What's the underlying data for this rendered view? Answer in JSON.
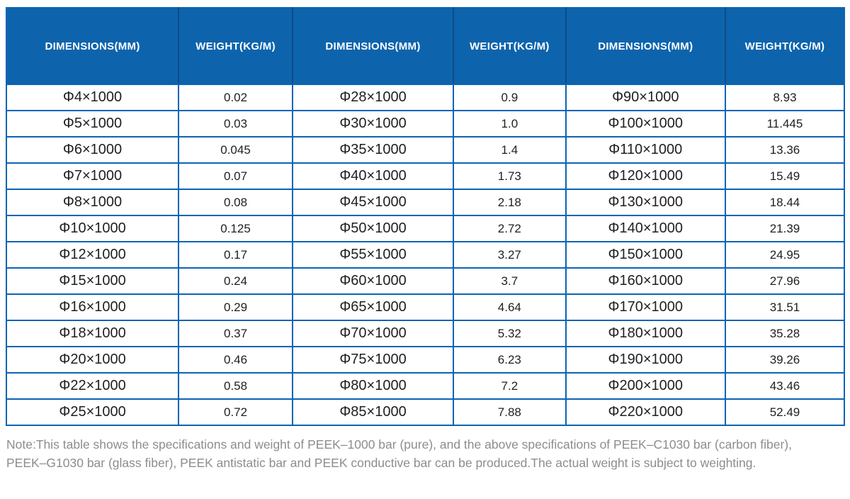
{
  "table": {
    "header": [
      "DIMENSIONS(MM)",
      "WEIGHT(KG/M)",
      "DIMENSIONS(MM)",
      "WEIGHT(KG/M)",
      "DIMENSIONS(MM)",
      "WEIGHT(KG/M)"
    ],
    "rows": [
      [
        "Φ4×1000",
        "0.02",
        "Φ28×1000",
        "0.9",
        "Φ90×1000",
        "8.93"
      ],
      [
        "Φ5×1000",
        "0.03",
        "Φ30×1000",
        "1.0",
        "Φ100×1000",
        "11.445"
      ],
      [
        "Φ6×1000",
        "0.045",
        "Φ35×1000",
        "1.4",
        "Φ110×1000",
        "13.36"
      ],
      [
        "Φ7×1000",
        "0.07",
        "Φ40×1000",
        "1.73",
        "Φ120×1000",
        "15.49"
      ],
      [
        "Φ8×1000",
        "0.08",
        "Φ45×1000",
        "2.18",
        "Φ130×1000",
        "18.44"
      ],
      [
        "Φ10×1000",
        "0.125",
        "Φ50×1000",
        "2.72",
        "Φ140×1000",
        "21.39"
      ],
      [
        "Φ12×1000",
        "0.17",
        "Φ55×1000",
        "3.27",
        "Φ150×1000",
        "24.95"
      ],
      [
        "Φ15×1000",
        "0.24",
        "Φ60×1000",
        "3.7",
        "Φ160×1000",
        "27.96"
      ],
      [
        "Φ16×1000",
        "0.29",
        "Φ65×1000",
        "4.64",
        "Φ170×1000",
        "31.51"
      ],
      [
        "Φ18×1000",
        "0.37",
        "Φ70×1000",
        "5.32",
        "Φ180×1000",
        "35.28"
      ],
      [
        "Φ20×1000",
        "0.46",
        "Φ75×1000",
        "6.23",
        "Φ190×1000",
        "39.26"
      ],
      [
        "Φ22×1000",
        "0.58",
        "Φ80×1000",
        "7.2",
        "Φ200×1000",
        "43.46"
      ],
      [
        "Φ25×1000",
        "0.72",
        "Φ85×1000",
        "7.88",
        "Φ220×1000",
        "52.49"
      ]
    ]
  },
  "note": {
    "line1": "Note:This table shows the specifications and weight of PEEK–1000 bar (pure), and the above specifications of PEEK–C1030 bar (carbon fiber),",
    "line2": "PEEK–G1030 bar (glass fiber), PEEK antistatic bar and PEEK conductive bar can be produced.The actual weight is subject to weighting."
  },
  "colors": {
    "header_background": "#0d64ad",
    "header_separator": "#0d4c85",
    "grid_border": "#0a64b4",
    "cell_text": "#1f1f1f",
    "note_text": "#8d8d8d",
    "header_text": "#ffffff"
  }
}
